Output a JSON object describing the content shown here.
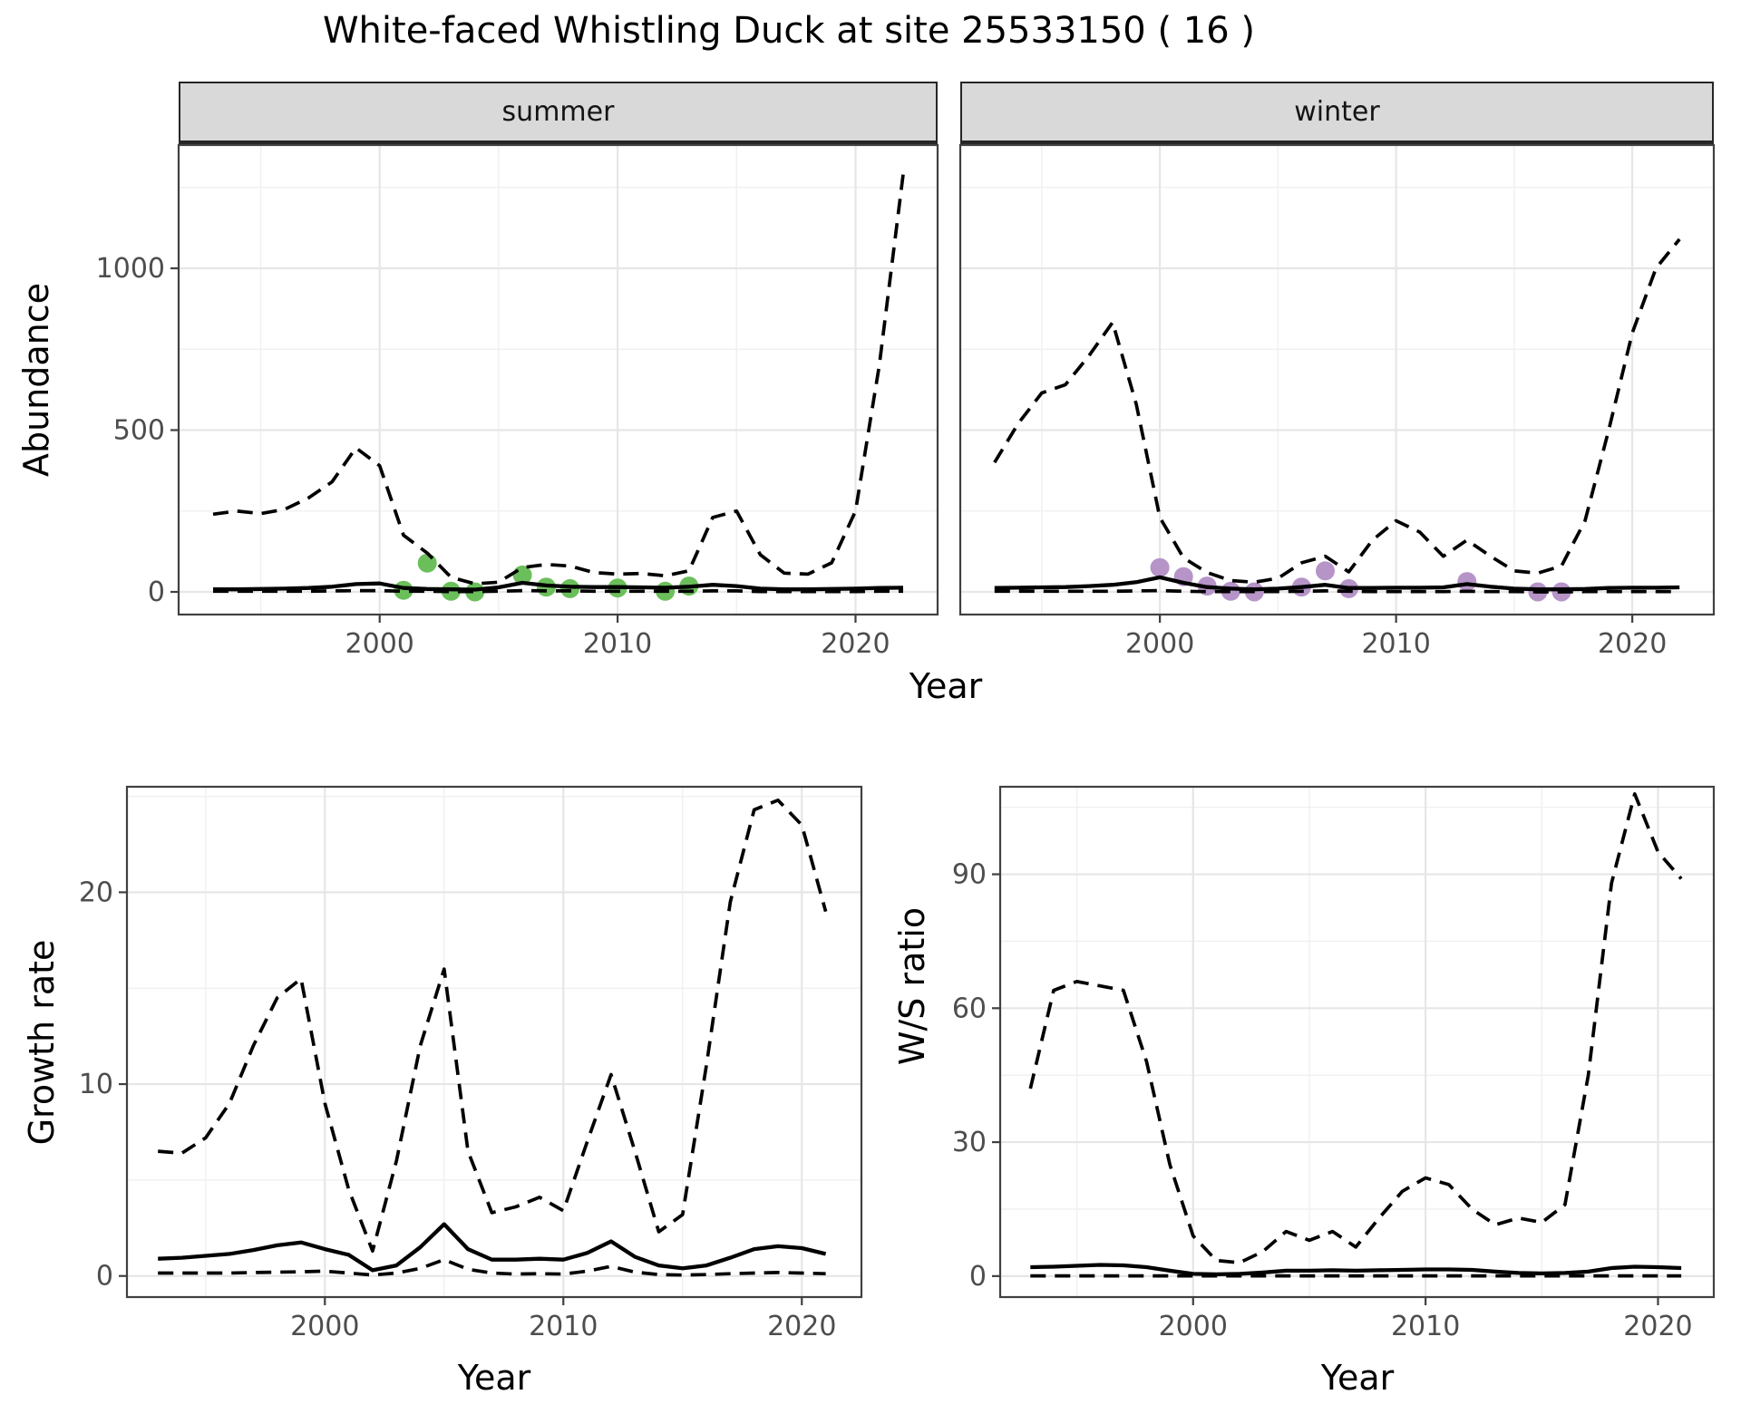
{
  "title": "White-faced Whistling Duck at site 25533150 ( 16 )",
  "facets": {
    "summer": "summer",
    "winter": "winter"
  },
  "axis_labels": {
    "abundance": "Abundance",
    "growth_rate": "Growth rate",
    "ws_ratio": "W/S ratio",
    "year": "Year"
  },
  "colors": {
    "observation_summer": "#6bbf5b",
    "observation_winter": "#b694c8",
    "line": "#000000",
    "strip_bg": "#d9d9d9",
    "strip_border": "#262626",
    "grid_major": "#e6e6e6",
    "grid_minor": "#f1f1f1",
    "panel_border": "#404040",
    "tick_text": "#4d4d4d"
  },
  "chart_data": [
    {
      "id": "abundance-summer",
      "type": "line",
      "facet_label": "summer",
      "ylabel": "Abundance",
      "xlabel": "Year",
      "xlim": [
        1991.55,
        2023.45
      ],
      "ylim": [
        -70,
        1381
      ],
      "x_major_ticks": [
        2000,
        2010,
        2020
      ],
      "x_minor_ticks": [
        1995,
        2005,
        2015
      ],
      "y_major_ticks": [
        0,
        500,
        1000
      ],
      "y_minor_ticks": [
        250,
        750,
        1250
      ],
      "grid": true,
      "years": [
        1993,
        1994,
        1995,
        1996,
        1997,
        1998,
        1999,
        2000,
        2001,
        2002,
        2003,
        2004,
        2005,
        2006,
        2007,
        2008,
        2009,
        2010,
        2011,
        2012,
        2013,
        2014,
        2015,
        2016,
        2017,
        2018,
        2019,
        2020,
        2021,
        2022
      ],
      "series": [
        {
          "name": "mean",
          "style": "solid",
          "values": [
            8,
            8,
            9,
            10,
            12,
            16,
            24,
            26,
            12,
            9,
            8,
            7,
            14,
            28,
            20,
            16,
            15,
            15,
            14,
            13,
            16,
            22,
            18,
            10,
            8,
            8,
            9,
            10,
            12,
            13
          ]
        },
        {
          "name": "lower_ci",
          "style": "dashed",
          "values": [
            2,
            2,
            2,
            2,
            2,
            3,
            4,
            4,
            2,
            2,
            1,
            1,
            2,
            4,
            3,
            3,
            2,
            2,
            2,
            2,
            2,
            3,
            3,
            1,
            1,
            1,
            1,
            1,
            2,
            2
          ]
        },
        {
          "name": "upper_ci",
          "style": "dashed",
          "values": [
            240,
            250,
            242,
            255,
            290,
            340,
            445,
            390,
            175,
            120,
            45,
            25,
            30,
            75,
            85,
            80,
            60,
            55,
            57,
            50,
            65,
            230,
            250,
            115,
            58,
            55,
            90,
            250,
            700,
            1290
          ]
        }
      ],
      "observations": {
        "name": "observed_counts",
        "color": "#6bbf5b",
        "points": [
          [
            2001,
            5
          ],
          [
            2002,
            89
          ],
          [
            2003,
            2
          ],
          [
            2004,
            0
          ],
          [
            2006,
            52
          ],
          [
            2007,
            15
          ],
          [
            2008,
            10
          ],
          [
            2010,
            12
          ],
          [
            2012,
            2
          ],
          [
            2013,
            18
          ]
        ]
      }
    },
    {
      "id": "abundance-winter",
      "type": "line",
      "facet_label": "winter",
      "ylabel": "Abundance",
      "xlabel": "Year",
      "xlim": [
        1991.55,
        2023.45
      ],
      "ylim": [
        -70,
        1381
      ],
      "x_major_ticks": [
        2000,
        2010,
        2020
      ],
      "x_minor_ticks": [
        1995,
        2005,
        2015
      ],
      "y_major_ticks": [
        0,
        500,
        1000
      ],
      "y_minor_ticks": [
        250,
        750,
        1250
      ],
      "grid": true,
      "years": [
        1993,
        1994,
        1995,
        1996,
        1997,
        1998,
        1999,
        2000,
        2001,
        2002,
        2003,
        2004,
        2005,
        2006,
        2007,
        2008,
        2009,
        2010,
        2011,
        2012,
        2013,
        2014,
        2015,
        2016,
        2017,
        2018,
        2019,
        2020,
        2021,
        2022
      ],
      "series": [
        {
          "name": "mean",
          "style": "solid",
          "values": [
            12,
            13,
            14,
            15,
            18,
            22,
            30,
            45,
            28,
            15,
            10,
            8,
            10,
            15,
            22,
            12,
            12,
            13,
            13,
            14,
            24,
            16,
            10,
            8,
            8,
            9,
            12,
            13,
            13,
            14
          ]
        },
        {
          "name": "lower_ci",
          "style": "dashed",
          "values": [
            2,
            2,
            2,
            2,
            2,
            2,
            3,
            4,
            2,
            1,
            1,
            1,
            1,
            2,
            3,
            2,
            1,
            1,
            1,
            1,
            2,
            1,
            1,
            0,
            0,
            1,
            1,
            1,
            1,
            1
          ]
        },
        {
          "name": "upper_ci",
          "style": "dashed",
          "values": [
            400,
            520,
            615,
            640,
            730,
            833,
            580,
            230,
            105,
            60,
            35,
            30,
            42,
            90,
            110,
            62,
            160,
            220,
            185,
            110,
            160,
            110,
            65,
            58,
            80,
            220,
            500,
            800,
            1000,
            1090
          ]
        }
      ],
      "observations": {
        "name": "observed_counts",
        "color": "#b694c8",
        "points": [
          [
            2000,
            75
          ],
          [
            2001,
            47
          ],
          [
            2002,
            18
          ],
          [
            2003,
            2
          ],
          [
            2004,
            0
          ],
          [
            2006,
            15
          ],
          [
            2007,
            65
          ],
          [
            2008,
            10
          ],
          [
            2013,
            32
          ],
          [
            2016,
            0
          ],
          [
            2017,
            0
          ]
        ]
      }
    },
    {
      "id": "growth-rate",
      "type": "line",
      "ylabel": "Growth rate",
      "xlabel": "Year",
      "xlim": [
        1991.7,
        2022.5
      ],
      "ylim": [
        -1.1,
        25.5
      ],
      "x_major_ticks": [
        2000,
        2010,
        2020
      ],
      "x_minor_ticks": [
        1995,
        2005,
        2015
      ],
      "y_major_ticks": [
        0,
        10,
        20
      ],
      "y_minor_ticks": [
        5,
        15,
        25
      ],
      "grid": true,
      "years": [
        1993,
        1994,
        1995,
        1996,
        1997,
        1998,
        1999,
        2000,
        2001,
        2002,
        2003,
        2004,
        2005,
        2006,
        2007,
        2008,
        2009,
        2010,
        2011,
        2012,
        2013,
        2014,
        2015,
        2016,
        2017,
        2018,
        2019,
        2020,
        2021
      ],
      "series": [
        {
          "name": "mean",
          "style": "solid",
          "values": [
            0.9,
            0.95,
            1.05,
            1.15,
            1.35,
            1.6,
            1.75,
            1.4,
            1.1,
            0.3,
            0.55,
            1.5,
            2.7,
            1.4,
            0.85,
            0.85,
            0.9,
            0.85,
            1.2,
            1.8,
            1.0,
            0.55,
            0.4,
            0.55,
            0.95,
            1.4,
            1.55,
            1.45,
            1.15
          ]
        },
        {
          "name": "lower_ci",
          "style": "dashed",
          "values": [
            0.15,
            0.15,
            0.15,
            0.15,
            0.18,
            0.2,
            0.22,
            0.25,
            0.15,
            0.05,
            0.15,
            0.4,
            0.85,
            0.35,
            0.15,
            0.1,
            0.12,
            0.1,
            0.25,
            0.5,
            0.2,
            0.07,
            0.05,
            0.07,
            0.12,
            0.15,
            0.18,
            0.15,
            0.12
          ]
        },
        {
          "name": "upper_ci",
          "style": "dashed",
          "values": [
            6.5,
            6.4,
            7.2,
            9,
            12,
            14.5,
            15.5,
            9,
            4.5,
            1.3,
            6,
            12,
            16,
            6.5,
            3.3,
            3.6,
            4.1,
            3.4,
            7,
            10.5,
            6.5,
            2.3,
            3.2,
            11,
            19.5,
            24.3,
            24.8,
            23.5,
            19
          ]
        }
      ]
    },
    {
      "id": "ws-ratio",
      "type": "line",
      "ylabel": "W/S ratio",
      "xlabel": "Year",
      "xlim": [
        1991.7,
        2022.4
      ],
      "ylim": [
        -4.7,
        109.6
      ],
      "x_major_ticks": [
        2000,
        2010,
        2020
      ],
      "x_minor_ticks": [
        1995,
        2005,
        2015
      ],
      "y_major_ticks": [
        0,
        30,
        60,
        90
      ],
      "y_minor_ticks": [
        15,
        45,
        75,
        105
      ],
      "grid": true,
      "years": [
        1993,
        1994,
        1995,
        1996,
        1997,
        1998,
        1999,
        2000,
        2001,
        2002,
        2003,
        2004,
        2005,
        2006,
        2007,
        2008,
        2009,
        2010,
        2011,
        2012,
        2013,
        2014,
        2015,
        2016,
        2017,
        2018,
        2019,
        2020,
        2021
      ],
      "series": [
        {
          "name": "mean",
          "style": "solid",
          "values": [
            2,
            2.1,
            2.3,
            2.5,
            2.4,
            2,
            1.2,
            0.5,
            0.4,
            0.5,
            0.8,
            1.2,
            1.2,
            1.3,
            1.2,
            1.3,
            1.4,
            1.5,
            1.5,
            1.4,
            1,
            0.7,
            0.6,
            0.7,
            1,
            1.8,
            2.1,
            2,
            1.8
          ]
        },
        {
          "name": "lower_ci",
          "style": "dashed",
          "values": [
            0.05,
            0.05,
            0.05,
            0.05,
            0.05,
            0.05,
            0.05,
            0.05,
            0.05,
            0.05,
            0.05,
            0.05,
            0.05,
            0.05,
            0.05,
            0.05,
            0.05,
            0.05,
            0.05,
            0.05,
            0.05,
            0.05,
            0.05,
            0.05,
            0.05,
            0.05,
            0.05,
            0.05,
            0.05
          ]
        },
        {
          "name": "upper_ci",
          "style": "dashed",
          "values": [
            42,
            64,
            66,
            65,
            64,
            48,
            25,
            9,
            3.5,
            3,
            5.5,
            10,
            8,
            10,
            6.5,
            13,
            19,
            22,
            20.5,
            15,
            11.5,
            13,
            12,
            16,
            45,
            88,
            108,
            95,
            89
          ]
        }
      ]
    }
  ]
}
